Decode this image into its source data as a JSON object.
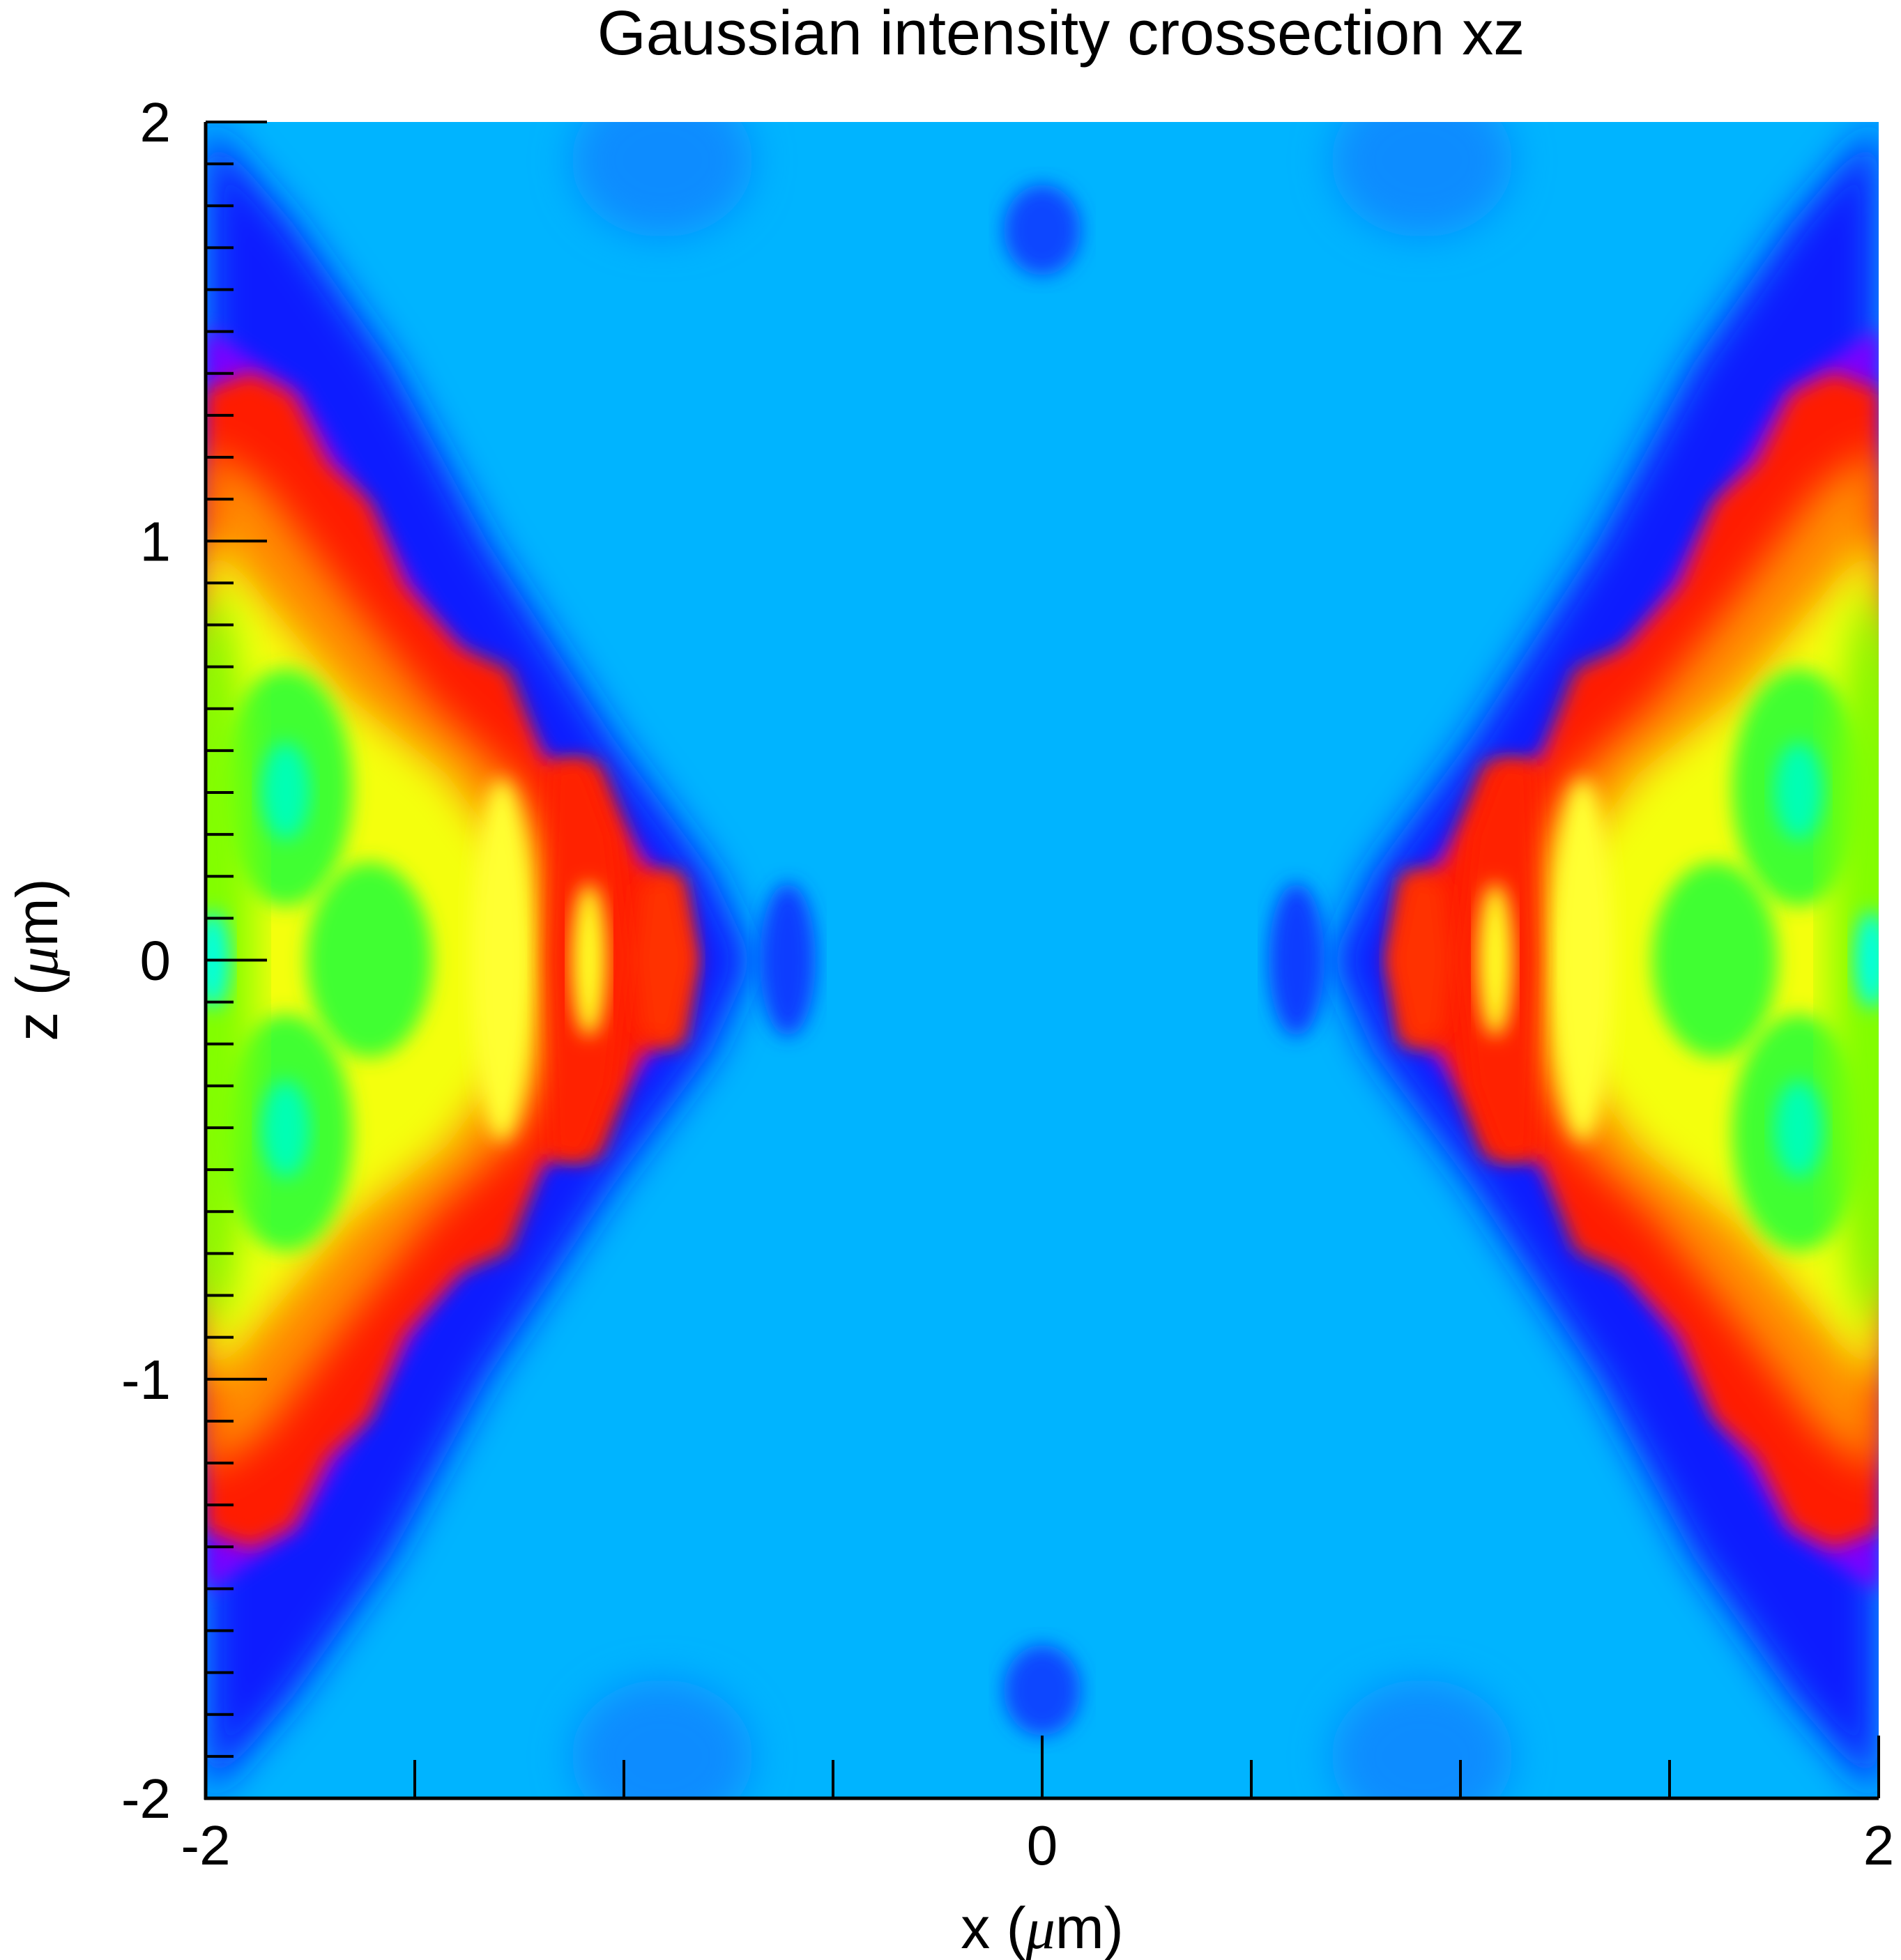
{
  "chart_data": {
    "type": "heatmap",
    "title": "Gaussian intensity crossection xz",
    "xlabel_prefix": "x (",
    "xlabel_greek": "μ",
    "xlabel_suffix": "m)",
    "ylabel_prefix": "z (",
    "ylabel_greek": "μ",
    "ylabel_suffix": "m)",
    "xlim": [
      -2,
      2
    ],
    "ylim": [
      -2,
      2
    ],
    "x_tick_labels": [
      {
        "value": -2,
        "text": "-2"
      },
      {
        "value": 0,
        "text": "0"
      },
      {
        "value": 2,
        "text": "2"
      }
    ],
    "y_tick_labels": [
      {
        "value": 2,
        "text": "2"
      },
      {
        "value": 1,
        "text": "1"
      },
      {
        "value": 0,
        "text": "0"
      },
      {
        "value": -1,
        "text": "-1"
      },
      {
        "value": -2,
        "text": "-2"
      }
    ],
    "x_minor_step": 0.5,
    "y_minor_step": 0.1,
    "colormap": [
      "#8000ff",
      "#0000ff",
      "#00b4ff",
      "#00ffa0",
      "#80ff00",
      "#ffff00",
      "#ff8000",
      "#ff0000"
    ],
    "background_value_color": "#00b4ff",
    "colorbar": false,
    "grid": false
  }
}
